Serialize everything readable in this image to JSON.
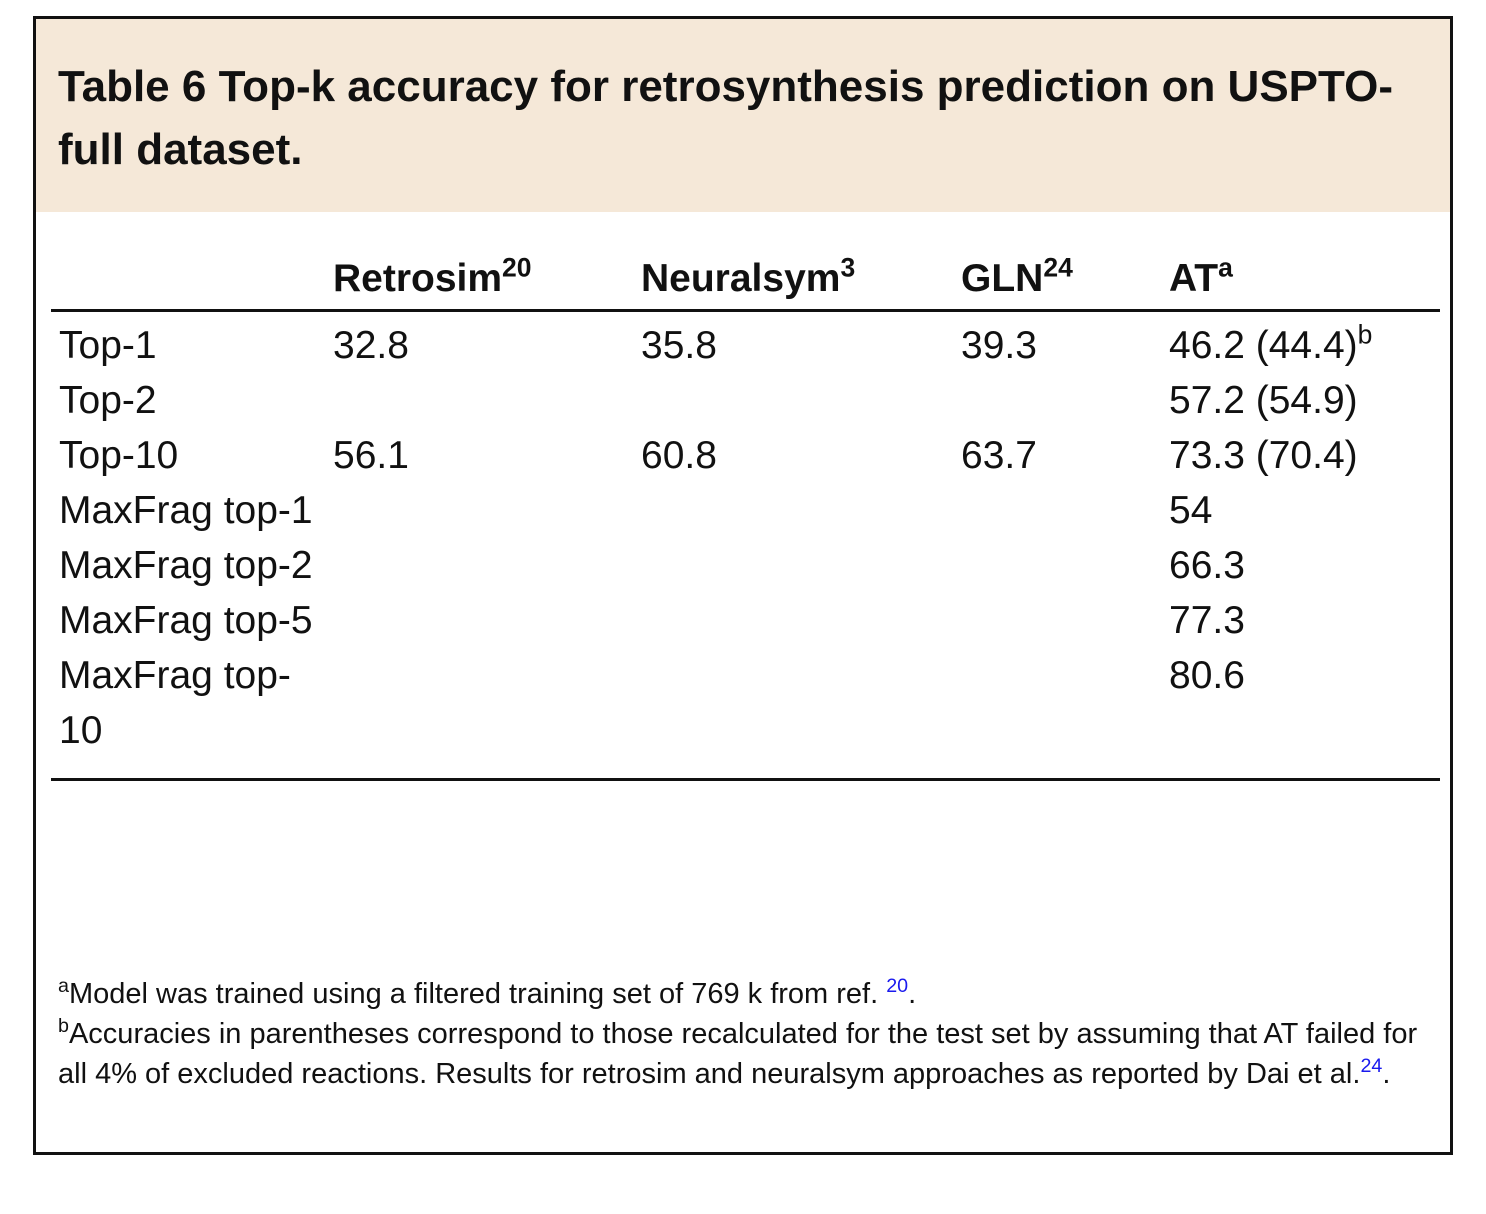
{
  "title": "Table 6 Top-k accuracy for retrosynthesis prediction on USPTO-full dataset.",
  "table": {
    "columns": [
      {
        "name": "Retrosim",
        "ref": "20"
      },
      {
        "name": "Neuralsym",
        "ref": "3"
      },
      {
        "name": "GLN",
        "ref": "24"
      },
      {
        "name": "AT",
        "ref": "a"
      }
    ],
    "rows": [
      {
        "label": "Top-1",
        "values": [
          "32.8",
          "35.8",
          "39.3",
          "46.2 (44.4)"
        ],
        "note": "b"
      },
      {
        "label": "Top-2",
        "values": [
          null,
          null,
          null,
          "57.2 (54.9)"
        ]
      },
      {
        "label": "Top-10",
        "values": [
          "56.1",
          "60.8",
          "63.7",
          "73.3 (70.4)"
        ]
      },
      {
        "label": "MaxFrag top-1",
        "values": [
          null,
          null,
          null,
          "54"
        ]
      },
      {
        "label": "MaxFrag top-2",
        "values": [
          null,
          null,
          null,
          "66.3"
        ]
      },
      {
        "label": "MaxFrag top-5",
        "values": [
          null,
          null,
          null,
          "77.3"
        ]
      },
      {
        "label": "MaxFrag top-10",
        "values": [
          null,
          null,
          null,
          "80.6"
        ]
      }
    ]
  },
  "footnotes": [
    {
      "mark": "a",
      "text": "Model was trained using a filtered training set of 769 k from ref. ",
      "ref": "20",
      "end": "."
    },
    {
      "mark": "b",
      "text": "Accuracies in parentheses correspond to those recalculated for the test set by assuming that AT failed for all 4% of excluded reactions. Results for retrosim and neuralsym approaches as reported by Dai et al.",
      "ref": "24",
      "end": "."
    }
  ]
}
